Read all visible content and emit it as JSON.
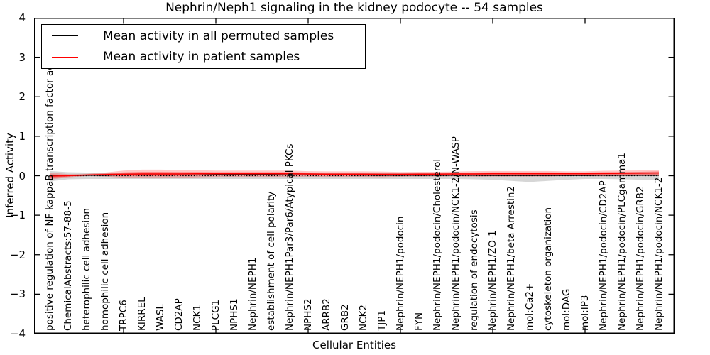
{
  "chart_data": {
    "type": "line",
    "title": "Nephrin/Neph1 signaling in the kidney podocyte -- 54 samples",
    "xlabel": "Cellular Entities",
    "ylabel": "Inferred Activity",
    "ylim": [
      -4,
      4
    ],
    "grid": false,
    "legend_position": "upper left",
    "yticks": {
      "values": [
        4,
        3,
        2,
        1,
        0,
        -1,
        -2,
        -3,
        -4
      ],
      "labels": [
        "4",
        "3",
        "2",
        "1",
        "0",
        "−1",
        "−2",
        "−3",
        "−4"
      ]
    },
    "x_major_tick_indices": [
      4,
      9,
      14,
      19,
      24,
      29
    ],
    "categories": [
      "positive regulation of NF-kappaB transcription factor activity",
      "ChemicalAbstracts:57-88-5",
      "heterophilic cell adhesion",
      "homophilic cell adhesion",
      "TRPC6",
      "KIRREL",
      "WASL",
      "CD2AP",
      "NCK1",
      "PLCG1",
      "NPHS1",
      "Nephrin/NEPH1",
      "establishment of cell polarity",
      "Nephrin/NEPH1Par3/Par6/Atypical PKCs",
      "NPHS2",
      "ARRB2",
      "GRB2",
      "NCK2",
      "TJP1",
      "Nephrin/NEPH1/podocin",
      "FYN",
      "Nephrin/NEPH1/podocin/Cholesterol",
      "Nephrin/NEPH1/podocin/NCK1-2/N-WASP",
      "regulation of endocytosis",
      "Nephrin/NEPH1/ZO-1",
      "Nephrin/NEPH1/beta Arrestin2",
      "mol:Ca2+",
      "cytoskeleton organization",
      "mol:DAG",
      "mol:IP3",
      "Nephrin/NEPH1/podocin/CD2AP",
      "Nephrin/NEPH1/podocin/PLCgamma1",
      "Nephrin/NEPH1/podocin/GRB2",
      "Nephrin/NEPH1/podocin/NCK1-2"
    ],
    "series": [
      {
        "name": "Mean activity in all permuted samples",
        "color": "#000000",
        "values": [
          0.0,
          0.0,
          0.01,
          0.01,
          0.02,
          0.02,
          0.02,
          0.02,
          0.02,
          0.025,
          0.025,
          0.025,
          0.025,
          0.02,
          0.02,
          0.02,
          0.02,
          0.015,
          0.01,
          0.01,
          0.01,
          0.01,
          0.01,
          0.01,
          0.005,
          0.005,
          0.005,
          0.005,
          0.005,
          0.005,
          0.01,
          0.01,
          0.01,
          0.01
        ]
      },
      {
        "name": "Mean activity in patient samples",
        "color": "#ff0000",
        "values": [
          -0.01,
          0.0,
          0.02,
          0.03,
          0.04,
          0.045,
          0.045,
          0.045,
          0.05,
          0.05,
          0.05,
          0.05,
          0.05,
          0.05,
          0.045,
          0.04,
          0.04,
          0.04,
          0.035,
          0.035,
          0.04,
          0.04,
          0.045,
          0.045,
          0.05,
          0.05,
          0.05,
          0.05,
          0.05,
          0.05,
          0.055,
          0.06,
          0.065,
          0.07
        ]
      }
    ],
    "bands": [
      {
        "name": "permuted-samples-spread",
        "color": "#808080",
        "opacity": 0.32,
        "upper": [
          0.12,
          0.09,
          0.08,
          0.08,
          0.08,
          0.08,
          0.08,
          0.08,
          0.08,
          0.08,
          0.08,
          0.08,
          0.08,
          0.08,
          0.08,
          0.08,
          0.08,
          0.08,
          0.08,
          0.08,
          0.08,
          0.08,
          0.08,
          0.08,
          0.08,
          0.08,
          0.08,
          0.08,
          0.08,
          0.08,
          0.08,
          0.08,
          0.09,
          0.09
        ],
        "lower": [
          -0.14,
          -0.09,
          -0.08,
          -0.08,
          -0.08,
          -0.08,
          -0.08,
          -0.08,
          -0.08,
          -0.08,
          -0.08,
          -0.08,
          -0.08,
          -0.08,
          -0.08,
          -0.08,
          -0.08,
          -0.08,
          -0.08,
          -0.08,
          -0.08,
          -0.08,
          -0.08,
          -0.09,
          -0.1,
          -0.13,
          -0.16,
          -0.13,
          -0.1,
          -0.08,
          -0.08,
          -0.09,
          -0.1,
          -0.12
        ]
      },
      {
        "name": "patient-samples-spread-outer",
        "color": "#ff0000",
        "opacity": 0.22,
        "upper": [
          0.08,
          0.04,
          0.05,
          0.08,
          0.13,
          0.155,
          0.155,
          0.145,
          0.14,
          0.13,
          0.13,
          0.13,
          0.13,
          0.13,
          0.115,
          0.11,
          0.11,
          0.11,
          0.105,
          0.095,
          0.1,
          0.1,
          0.105,
          0.115,
          0.12,
          0.12,
          0.12,
          0.12,
          0.11,
          0.11,
          0.125,
          0.13,
          0.135,
          0.15
        ],
        "lower": [
          -0.1,
          -0.04,
          -0.01,
          -0.02,
          -0.05,
          -0.065,
          -0.065,
          -0.055,
          -0.04,
          -0.03,
          -0.03,
          -0.03,
          -0.03,
          -0.03,
          -0.025,
          -0.03,
          -0.03,
          -0.03,
          -0.035,
          -0.025,
          -0.02,
          -0.02,
          -0.015,
          -0.025,
          -0.02,
          -0.02,
          -0.02,
          -0.02,
          -0.01,
          -0.01,
          -0.015,
          -0.01,
          -0.005,
          -0.01
        ]
      },
      {
        "name": "patient-samples-spread-inner",
        "color": "#ff0000",
        "opacity": 0.3,
        "upper": [
          0.035,
          0.02,
          0.035,
          0.055,
          0.085,
          0.1,
          0.1,
          0.095,
          0.095,
          0.09,
          0.09,
          0.09,
          0.09,
          0.09,
          0.08,
          0.075,
          0.075,
          0.075,
          0.07,
          0.065,
          0.07,
          0.07,
          0.075,
          0.08,
          0.085,
          0.085,
          0.085,
          0.085,
          0.08,
          0.08,
          0.09,
          0.095,
          0.1,
          0.11
        ],
        "lower": [
          -0.055,
          -0.02,
          0.005,
          0.005,
          -0.005,
          -0.01,
          -0.01,
          -0.005,
          0.005,
          0.01,
          0.01,
          0.01,
          0.01,
          0.01,
          0.01,
          0.005,
          0.005,
          0.005,
          0.0,
          0.005,
          0.01,
          0.01,
          0.015,
          0.01,
          0.015,
          0.015,
          0.015,
          0.015,
          0.02,
          0.02,
          0.02,
          0.025,
          0.03,
          0.03
        ]
      }
    ],
    "zero_line": {
      "color": "#000000",
      "style": "dotted",
      "y": 0
    }
  }
}
